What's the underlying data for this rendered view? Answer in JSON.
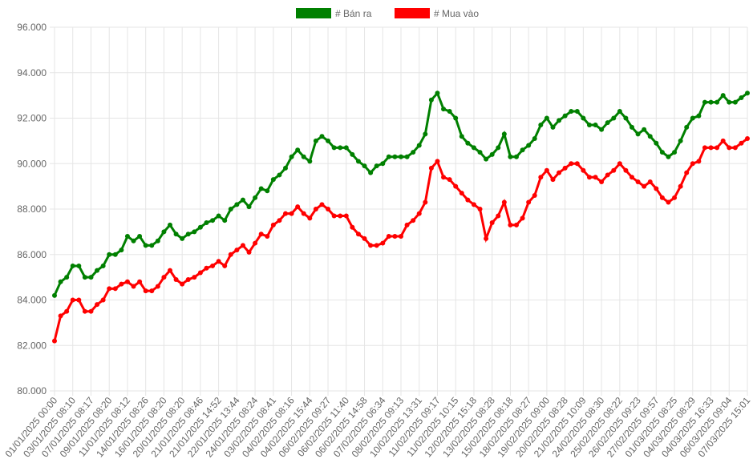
{
  "chart_data": {
    "type": "line",
    "categories": [
      "01/01/2025 00:00",
      null,
      null,
      "03/01/2025 08:10",
      null,
      null,
      "07/01/2025 08:17",
      null,
      null,
      "09/01/2025 08:20",
      null,
      null,
      "11/01/2025 08:12",
      null,
      null,
      "14/01/2025 08:26",
      null,
      null,
      "16/01/2025 08:20",
      null,
      null,
      "20/01/2025 08:20",
      null,
      null,
      "21/01/2025 08:46",
      null,
      null,
      "21/01/2025 14:52",
      null,
      null,
      "22/01/2025 13:44",
      null,
      null,
      "24/01/2025 08:24",
      null,
      null,
      "03/02/2025 08:41",
      null,
      null,
      "04/02/2025 08:16",
      null,
      null,
      "04/02/2025 15:44",
      null,
      null,
      "06/02/2025 09:27",
      null,
      null,
      "06/02/2025 11:40",
      null,
      null,
      "06/02/2025 14:58",
      null,
      null,
      "07/02/2025 06:34",
      null,
      null,
      "08/02/2025 09:13",
      null,
      null,
      "10/02/2025 13:31",
      null,
      null,
      "11/02/2025 09:17",
      null,
      null,
      "11/02/2025 10:15",
      null,
      null,
      "12/02/2025 15:18",
      null,
      null,
      "13/02/2025 08:28",
      null,
      null,
      "15/02/2025 08:18",
      null,
      null,
      "18/02/2025 08:27",
      null,
      null,
      "19/02/2025 09:00",
      null,
      null,
      "20/02/2025 08:28",
      null,
      null,
      "21/02/2025 10:09",
      null,
      null,
      "24/02/2025 08:30",
      null,
      null,
      "25/02/2025 08:22",
      null,
      null,
      "26/02/2025 09:23",
      null,
      null,
      "27/02/2025 09:57",
      null,
      null,
      "01/03/2025 08:25",
      null,
      null,
      "04/03/2025 08:29",
      null,
      null,
      "04/03/2025 16:33",
      null,
      null,
      "06/03/2025 09:04",
      null,
      null,
      "07/03/2025 15:01"
    ],
    "series": [
      {
        "name": "# Bán ra",
        "color": "#008000",
        "values": [
          84200,
          84800,
          85000,
          85500,
          85500,
          85000,
          85000,
          85300,
          85500,
          86000,
          86000,
          86200,
          86800,
          86600,
          86800,
          86400,
          86400,
          86600,
          87000,
          87300,
          86900,
          86700,
          86900,
          87000,
          87200,
          87400,
          87500,
          87700,
          87500,
          88000,
          88200,
          88400,
          88100,
          88500,
          88900,
          88800,
          89300,
          89500,
          89800,
          90300,
          90600,
          90300,
          90100,
          91000,
          91200,
          91000,
          90700,
          90700,
          90700,
          90400,
          90100,
          89900,
          89600,
          89900,
          90000,
          90300,
          90300,
          90300,
          90300,
          90500,
          90800,
          91300,
          92800,
          93100,
          92400,
          92300,
          92000,
          91200,
          90900,
          90700,
          90500,
          90200,
          90400,
          90700,
          91300,
          90300,
          90300,
          90600,
          90800,
          91100,
          91700,
          92000,
          91600,
          91900,
          92100,
          92300,
          92300,
          92000,
          91700,
          91700,
          91500,
          91800,
          92000,
          92300,
          92000,
          91600,
          91300,
          91500,
          91200,
          90900,
          90500,
          90300,
          90500,
          91000,
          91600,
          92000,
          92100,
          92700,
          92700,
          92700,
          93000,
          92700,
          92700,
          92900,
          93100
        ]
      },
      {
        "name": "# Mua vào",
        "color": "#ff0000",
        "values": [
          82200,
          83300,
          83500,
          84000,
          84000,
          83500,
          83500,
          83800,
          84000,
          84500,
          84500,
          84700,
          84800,
          84600,
          84800,
          84400,
          84400,
          84600,
          85000,
          85300,
          84900,
          84700,
          84900,
          85000,
          85200,
          85400,
          85500,
          85700,
          85500,
          86000,
          86200,
          86400,
          86100,
          86500,
          86900,
          86800,
          87300,
          87500,
          87800,
          87800,
          88100,
          87800,
          87600,
          88000,
          88200,
          88000,
          87700,
          87700,
          87700,
          87200,
          86900,
          86700,
          86400,
          86400,
          86500,
          86800,
          86800,
          86800,
          87300,
          87500,
          87800,
          88300,
          89800,
          90100,
          89400,
          89300,
          89000,
          88700,
          88400,
          88200,
          88000,
          86700,
          87400,
          87700,
          88300,
          87300,
          87300,
          87600,
          88300,
          88600,
          89400,
          89700,
          89300,
          89600,
          89800,
          90000,
          90000,
          89700,
          89400,
          89400,
          89200,
          89500,
          89700,
          90000,
          89700,
          89400,
          89200,
          89000,
          89200,
          88900,
          88500,
          88300,
          88500,
          89000,
          89600,
          90000,
          90100,
          90700,
          90700,
          90700,
          91000,
          90700,
          90700,
          90900,
          91100
        ]
      }
    ],
    "ylim": [
      80000,
      96000
    ],
    "yticks": [
      {
        "value": 80000,
        "label": "80.000"
      },
      {
        "value": 82000,
        "label": "82.000"
      },
      {
        "value": 84000,
        "label": "84.000"
      },
      {
        "value": 86000,
        "label": "86.000"
      },
      {
        "value": 88000,
        "label": "88.000"
      },
      {
        "value": 90000,
        "label": "90.000"
      },
      {
        "value": 92000,
        "label": "92.000"
      },
      {
        "value": 94000,
        "label": "94.000"
      },
      {
        "value": 96000,
        "label": "96.000"
      }
    ],
    "grid": true,
    "legend": "top"
  }
}
